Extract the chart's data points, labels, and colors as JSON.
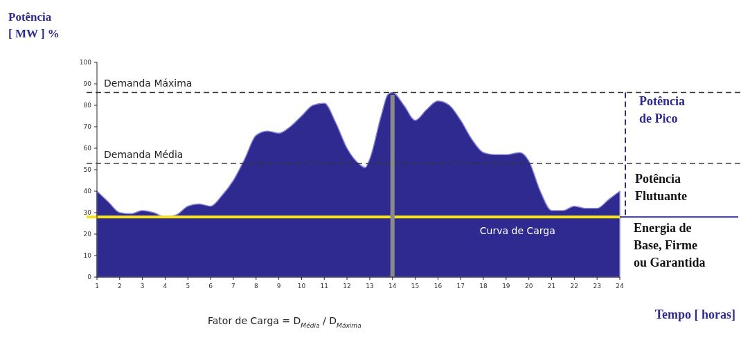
{
  "chart_data": {
    "type": "area",
    "ylabel": "Potência [ MW ] %",
    "xlabel": "Tempo [ horas]",
    "x": [
      1,
      1.5,
      2,
      2.5,
      3,
      3.5,
      4,
      4.5,
      5,
      5.5,
      6,
      6.5,
      7,
      7.5,
      8,
      8.5,
      9,
      9.5,
      10,
      10.5,
      11,
      11.5,
      12,
      12.5,
      12.8,
      13,
      13.5,
      13.8,
      14,
      14.5,
      15,
      15.5,
      16,
      16.5,
      17,
      17.5,
      18,
      18.5,
      19,
      19.6,
      20,
      20.5,
      21,
      21.5,
      22,
      22.5,
      23,
      23.5,
      24
    ],
    "series": [
      {
        "color": "#2e2a8f",
        "values": [
          40,
          35,
          30,
          29.5,
          31,
          30,
          28,
          29,
          33,
          34,
          33,
          38,
          45,
          55,
          66,
          68,
          67,
          70,
          75,
          80,
          81,
          72,
          60,
          53,
          51,
          55,
          75,
          85,
          86,
          80,
          73,
          78,
          82,
          80,
          73,
          64,
          58,
          57,
          57,
          58,
          54,
          40,
          31,
          31,
          33,
          32,
          32,
          36,
          40
        ]
      }
    ],
    "xlim": [
      1,
      24
    ],
    "xticks": [
      1,
      2,
      3,
      4,
      5,
      6,
      7,
      8,
      9,
      10,
      11,
      12,
      13,
      14,
      15,
      16,
      17,
      18,
      19,
      20,
      21,
      22,
      23,
      24
    ],
    "ylim": [
      0,
      100
    ],
    "yticks": [
      0,
      10,
      20,
      30,
      40,
      50,
      60,
      70,
      80,
      90,
      100
    ],
    "grid": false,
    "ref_lines": [
      {
        "axis": "y",
        "value": 86,
        "label": "Demanda Máxima",
        "color": "#333333",
        "line_style": "dashed"
      },
      {
        "axis": "y",
        "value": 53,
        "label": "Demanda Média",
        "color": "#333333",
        "line_style": "dashed"
      },
      {
        "axis": "y",
        "value": 28,
        "color": "#f5e21b",
        "line_style": "solid"
      },
      {
        "axis": "x",
        "value": 14,
        "color": "#8a8a8a",
        "line_style": "solid"
      }
    ],
    "annotations": [
      "Curva de Carga",
      "Potência de Pico",
      "Potência Flutuante",
      "Energia de Base, Firme ou Garantida",
      "Fator de Carga = D$_{Média}$ / D$_{Máxima}$"
    ]
  }
}
